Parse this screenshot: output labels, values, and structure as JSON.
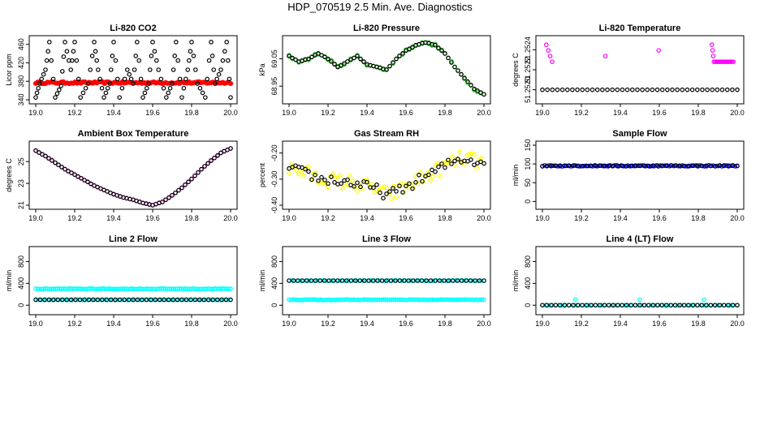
{
  "figure_title": "HDP_070519  2.5 Min. Ave. Diagnostics",
  "colors": {
    "red": "#ff0000",
    "green": "#22cc22",
    "magenta": "#ff00ff",
    "yellow": "#ffff00",
    "blue": "#0000ff",
    "cyan": "#00ffff",
    "black": "#000000"
  },
  "chart_data": [
    {
      "type": "scatter",
      "title": "Li-820 CO2",
      "ylabel": "Licor ppm",
      "xlim": [
        19.0,
        20.0
      ],
      "ylim": [
        340,
        470
      ],
      "xticks": [
        "19.0",
        "19.2",
        "19.4",
        "19.6",
        "19.8",
        "20.0"
      ],
      "yticks": [
        340,
        380,
        420,
        460
      ],
      "series": [
        {
          "name": "all",
          "color": "red",
          "shape": "filled-band",
          "baseline": 377,
          "jitter": 2,
          "points": 100
        },
        {
          "name": "sampled",
          "color": "black",
          "shape": "open",
          "x": [
            19.0,
            19.02,
            19.05,
            19.07,
            19.1,
            19.13,
            19.15,
            19.18,
            19.2,
            19.23,
            19.27,
            19.3,
            19.32,
            19.35,
            19.38,
            19.4,
            19.43,
            19.47,
            19.5,
            19.52,
            19.55,
            19.58,
            19.6,
            19.63,
            19.67,
            19.7,
            19.72,
            19.75,
            19.78,
            19.8,
            19.83,
            19.87,
            19.9,
            19.92,
            19.95,
            19.98,
            20.0
          ],
          "y": [
            345,
            375,
            405,
            465,
            345,
            370,
            465,
            405,
            465,
            345,
            375,
            465,
            405,
            345,
            375,
            465,
            345,
            405,
            375,
            465,
            345,
            375,
            465,
            405,
            345,
            375,
            465,
            345,
            405,
            465,
            375,
            345,
            465,
            375,
            405,
            465,
            345
          ]
        }
      ]
    },
    {
      "type": "scatter",
      "title": "Li-820 Pressure",
      "ylabel": "kPa",
      "xlim": [
        19.0,
        20.0
      ],
      "ylim": [
        68.9,
        69.12
      ],
      "xticks": [
        "19.0",
        "19.2",
        "19.4",
        "19.6",
        "19.8",
        "20.0"
      ],
      "yticks": [
        "68.95",
        "69.05"
      ],
      "ytick_values": [
        68.95,
        69.05
      ],
      "series": [
        {
          "name": "all",
          "color": "green",
          "shape": "open",
          "jitter": 0.005,
          "x": [
            19.0,
            19.05,
            19.1,
            19.15,
            19.2,
            19.25,
            19.3,
            19.35,
            19.4,
            19.45,
            19.5,
            19.55,
            19.6,
            19.65,
            19.7,
            19.75,
            19.8,
            19.85,
            19.9,
            19.95,
            20.0
          ],
          "y": [
            69.06,
            69.04,
            69.05,
            69.07,
            69.05,
            69.02,
            69.04,
            69.06,
            69.03,
            69.02,
            69.01,
            69.05,
            69.08,
            69.1,
            69.11,
            69.1,
            69.07,
            69.02,
            68.98,
            68.94,
            68.92
          ]
        },
        {
          "name": "sampled",
          "color": "black",
          "shape": "open",
          "jitter": 0.0,
          "x": [
            19.0,
            19.05,
            19.1,
            19.15,
            19.2,
            19.25,
            19.3,
            19.35,
            19.4,
            19.45,
            19.5,
            19.55,
            19.6,
            19.65,
            19.7,
            19.75,
            19.8,
            19.85,
            19.9,
            19.95,
            20.0
          ],
          "y": [
            69.06,
            69.04,
            69.05,
            69.07,
            69.05,
            69.02,
            69.04,
            69.06,
            69.03,
            69.02,
            69.01,
            69.05,
            69.08,
            69.1,
            69.11,
            69.1,
            69.07,
            69.02,
            68.98,
            68.94,
            68.92
          ]
        }
      ]
    },
    {
      "type": "scatter",
      "title": "Li-820 Temperature",
      "ylabel": "degrees C",
      "xlim": [
        19.0,
        20.0
      ],
      "ylim": [
        51.2519,
        51.2525
      ],
      "xticks": [
        "19.0",
        "19.2",
        "19.4",
        "19.6",
        "19.8",
        "20.0"
      ],
      "yticks": [
        "51.2520",
        "51.2522",
        "51.2524"
      ],
      "ytick_values": [
        51.252,
        51.2522,
        51.2524
      ],
      "series": [
        {
          "name": "all",
          "color": "magenta",
          "shape": "open",
          "x": [
            19.02,
            19.05,
            19.87,
            19.88,
            19.9,
            19.92,
            19.94,
            19.96,
            19.98
          ],
          "y": [
            51.25245,
            51.25228,
            51.25245,
            51.25228,
            51.25228,
            51.25228,
            51.25228,
            51.25228,
            51.25228
          ]
        },
        {
          "name": "sampled",
          "color": "black",
          "shape": "open",
          "baseline": 51.252,
          "jitter": 0.0,
          "points": 40
        }
      ]
    },
    {
      "type": "scatter",
      "title": "Ambient Box Temperature",
      "ylabel": "degrees C",
      "xlim": [
        19.0,
        20.0
      ],
      "ylim": [
        21,
        26.5
      ],
      "xticks": [
        "19.0",
        "19.2",
        "19.4",
        "19.6",
        "19.8",
        "20.0"
      ],
      "yticks": [
        21,
        23,
        25
      ],
      "series": [
        {
          "name": "all",
          "color": "magenta",
          "shape": "open",
          "jitter": 0.03,
          "x": [
            19.0,
            19.05,
            19.1,
            19.15,
            19.2,
            19.25,
            19.3,
            19.35,
            19.4,
            19.45,
            19.5,
            19.55,
            19.6,
            19.65,
            19.7,
            19.75,
            19.8,
            19.85,
            19.9,
            19.95,
            20.0
          ],
          "y": [
            26.0,
            25.5,
            24.9,
            24.3,
            23.8,
            23.3,
            22.8,
            22.4,
            22.0,
            21.7,
            21.5,
            21.2,
            21.0,
            21.3,
            21.9,
            22.6,
            23.4,
            24.3,
            25.1,
            25.8,
            26.2
          ]
        },
        {
          "name": "sampled",
          "color": "black",
          "shape": "open",
          "jitter": 0.0,
          "x": [
            19.0,
            19.05,
            19.1,
            19.15,
            19.2,
            19.25,
            19.3,
            19.35,
            19.4,
            19.45,
            19.5,
            19.55,
            19.6,
            19.65,
            19.7,
            19.75,
            19.8,
            19.85,
            19.9,
            19.95,
            20.0
          ],
          "y": [
            26.0,
            25.5,
            24.9,
            24.3,
            23.8,
            23.3,
            22.8,
            22.4,
            22.0,
            21.7,
            21.5,
            21.2,
            21.0,
            21.3,
            21.9,
            22.6,
            23.4,
            24.3,
            25.1,
            25.8,
            26.2
          ]
        }
      ]
    },
    {
      "type": "scatter",
      "title": "Gas Stream RH",
      "ylabel": "percent",
      "xlim": [
        19.0,
        20.0
      ],
      "ylim": [
        -0.4,
        -0.17
      ],
      "xticks": [
        "19.0",
        "19.2",
        "19.4",
        "19.6",
        "19.8",
        "20.0"
      ],
      "yticks": [
        "-0.40",
        "-0.30",
        "-0.20"
      ],
      "ytick_values": [
        -0.4,
        -0.3,
        -0.2
      ],
      "series": [
        {
          "name": "all",
          "color": "yellow",
          "shape": "open",
          "jitter": 0.03,
          "dense": 4,
          "x": [
            19.0,
            19.05,
            19.1,
            19.15,
            19.2,
            19.25,
            19.3,
            19.35,
            19.4,
            19.45,
            19.5,
            19.55,
            19.6,
            19.65,
            19.7,
            19.75,
            19.8,
            19.85,
            19.9,
            19.95,
            20.0
          ],
          "y": [
            -0.26,
            -0.27,
            -0.28,
            -0.3,
            -0.3,
            -0.31,
            -0.31,
            -0.32,
            -0.33,
            -0.34,
            -0.36,
            -0.35,
            -0.33,
            -0.31,
            -0.29,
            -0.27,
            -0.25,
            -0.23,
            -0.22,
            -0.23,
            -0.24
          ]
        },
        {
          "name": "sampled",
          "color": "black",
          "shape": "open",
          "jitter": 0.02,
          "x": [
            19.0,
            19.05,
            19.1,
            19.15,
            19.2,
            19.25,
            19.3,
            19.35,
            19.4,
            19.45,
            19.5,
            19.55,
            19.6,
            19.65,
            19.7,
            19.75,
            19.8,
            19.85,
            19.9,
            19.95,
            20.0
          ],
          "y": [
            -0.26,
            -0.27,
            -0.28,
            -0.3,
            -0.3,
            -0.31,
            -0.31,
            -0.32,
            -0.33,
            -0.34,
            -0.36,
            -0.35,
            -0.33,
            -0.31,
            -0.29,
            -0.27,
            -0.25,
            -0.23,
            -0.22,
            -0.23,
            -0.24
          ]
        }
      ]
    },
    {
      "type": "scatter",
      "title": "Sample Flow",
      "ylabel": "ml/min",
      "xlim": [
        19.0,
        20.0
      ],
      "ylim": [
        -10,
        150
      ],
      "xticks": [
        "19.0",
        "19.2",
        "19.4",
        "19.6",
        "19.8",
        "20.0"
      ],
      "yticks": [
        0,
        50,
        100,
        150
      ],
      "series": [
        {
          "name": "all",
          "color": "blue",
          "shape": "open",
          "baseline": 95,
          "jitter": 1.5,
          "points": 90
        },
        {
          "name": "sampled",
          "color": "black",
          "shape": "open",
          "baseline": 95,
          "jitter": 1,
          "points": 45
        }
      ]
    },
    {
      "type": "scatter",
      "title": "Line 2 Flow",
      "ylabel": "ml/min",
      "xlim": [
        19.0,
        20.0
      ],
      "ylim": [
        -100,
        1000
      ],
      "xticks": [
        "19.0",
        "19.2",
        "19.4",
        "19.6",
        "19.8",
        "20.0"
      ],
      "yticks": [
        0,
        400,
        800
      ],
      "series": [
        {
          "name": "upper",
          "color": "cyan",
          "shape": "open",
          "baseline": 300,
          "jitter": 6,
          "points": 100
        },
        {
          "name": "lower",
          "color": "cyan",
          "shape": "open",
          "baseline": 100,
          "jitter": 3,
          "points": 80
        },
        {
          "name": "sampled",
          "color": "black",
          "shape": "open",
          "baseline": 100,
          "jitter": 0,
          "points": 45
        }
      ]
    },
    {
      "type": "scatter",
      "title": "Line 3 Flow",
      "ylabel": "ml/min",
      "xlim": [
        19.0,
        20.0
      ],
      "ylim": [
        -100,
        1000
      ],
      "xticks": [
        "19.0",
        "19.2",
        "19.4",
        "19.6",
        "19.8",
        "20.0"
      ],
      "yticks": [
        0,
        400,
        800
      ],
      "series": [
        {
          "name": "upper",
          "color": "cyan",
          "shape": "open",
          "baseline": 450,
          "jitter": 4,
          "points": 70
        },
        {
          "name": "lower",
          "color": "cyan",
          "shape": "open",
          "baseline": 100,
          "jitter": 6,
          "points": 100
        },
        {
          "name": "sampled",
          "color": "black",
          "shape": "open",
          "baseline": 450,
          "jitter": 0,
          "points": 45
        }
      ]
    },
    {
      "type": "scatter",
      "title": "Line 4 (LT) Flow",
      "ylabel": "ml/min",
      "xlim": [
        19.0,
        20.0
      ],
      "ylim": [
        -100,
        1000
      ],
      "xticks": [
        "19.0",
        "19.2",
        "19.4",
        "19.6",
        "19.8",
        "20.0"
      ],
      "yticks": [
        0,
        400,
        800
      ],
      "series": [
        {
          "name": "all",
          "color": "cyan",
          "shape": "open",
          "baseline": 0,
          "jitter": 0,
          "points": 60,
          "outliers_x": [
            19.17,
            19.5,
            19.83
          ],
          "outliers_y": [
            100,
            100,
            100
          ]
        },
        {
          "name": "sampled",
          "color": "black",
          "shape": "open",
          "baseline": 0,
          "jitter": 0,
          "points": 45
        }
      ]
    }
  ]
}
